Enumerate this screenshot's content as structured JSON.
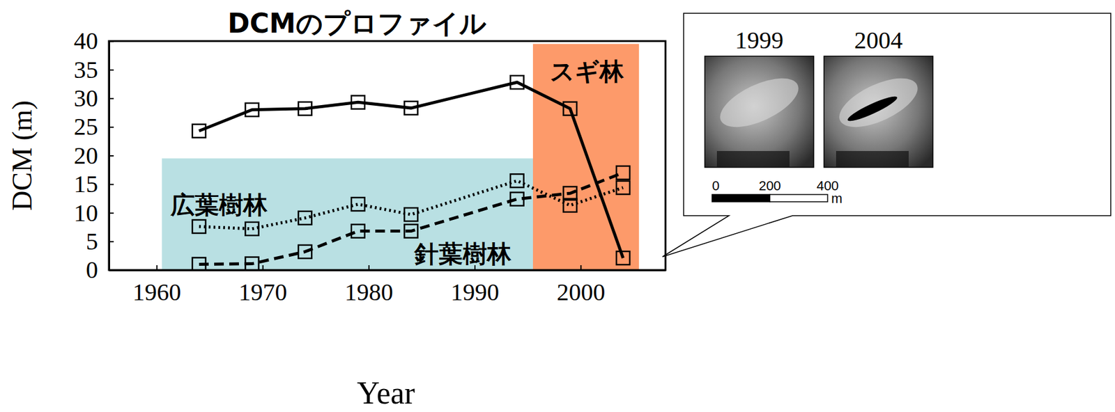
{
  "chart_data": {
    "type": "line",
    "title": "DCMのプロファイル",
    "x_label": "Year",
    "y_label": "DCM (m)",
    "x": [
      1964,
      1969,
      1974,
      1979,
      1984,
      1994,
      1999,
      2004
    ],
    "series": [
      {
        "name": "スギ林",
        "color": "#000000",
        "line_style": "solid",
        "marker": "square",
        "values": [
          24.3,
          28.0,
          28.2,
          29.3,
          28.3,
          32.8,
          28.2,
          2.1
        ]
      },
      {
        "name": "広葉樹林",
        "color": "#000000",
        "line_style": "dotted",
        "marker": "square",
        "values": [
          7.6,
          7.2,
          9.1,
          11.5,
          9.7,
          15.6,
          11.3,
          14.4
        ]
      },
      {
        "name": "針葉樹林",
        "color": "#000000",
        "line_style": "dashed",
        "marker": "square",
        "values": [
          1.0,
          1.1,
          3.2,
          6.8,
          6.8,
          12.4,
          13.4,
          17.0
        ]
      }
    ],
    "shaded_regions": [
      {
        "x": [
          1960.5,
          1995.5
        ],
        "y": [
          0,
          19.5
        ],
        "color": "#b9e0e3"
      },
      {
        "x": [
          1995.5,
          2005.5
        ],
        "y": [
          0,
          39.5
        ],
        "color": "#fd9a6a"
      }
    ],
    "xlim": [
      1955.5,
      2008
    ],
    "xticks": [
      1960,
      1970,
      1980,
      1990,
      2000
    ],
    "ylim": [
      0,
      40
    ],
    "yticks": [
      0,
      5,
      10,
      15,
      20,
      25,
      30,
      35,
      40
    ],
    "grid": false,
    "inset": {
      "titles": [
        "1999",
        "2004"
      ],
      "scale_ticks": [
        0,
        200,
        400
      ],
      "scale_unit": "m"
    }
  }
}
